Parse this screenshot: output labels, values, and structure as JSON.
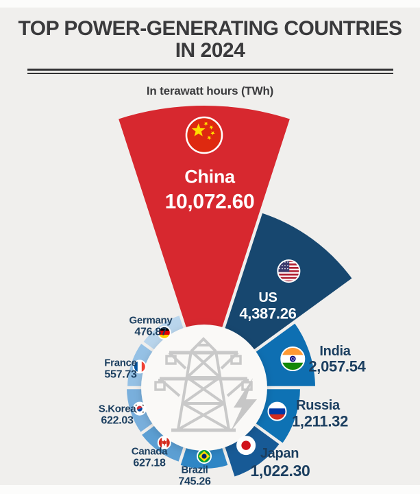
{
  "header": {
    "title_line1": "TOP POWER-GENERATING COUNTRIES",
    "title_line2": "IN 2024",
    "subtitle": "In terawatt hours (TWh)"
  },
  "colors": {
    "background": "#F0EFED",
    "label_navy": "#1C3F60",
    "title_text": "#3A3A3C",
    "center_circle": "#FAF9F7",
    "icon_gray": "#C9C9C9"
  },
  "chart_data": {
    "type": "polar-area-rose",
    "title": "TOP POWER-GENERATING COUNTRIES IN 2024",
    "unit": "TWh",
    "unit_label": "In terawatt hours (TWh)",
    "order": "clockwise from top, descending value, equal 36-degree sectors",
    "center_icon": "transmission-tower-with-lightning-bolt",
    "series": [
      {
        "country": "China",
        "value": 10072.6,
        "display": "10,072.60",
        "color": "#D7282F",
        "flag": "china",
        "label_color": "#FFFFFF"
      },
      {
        "country": "US",
        "value": 4387.26,
        "display": "4,387.26",
        "color": "#17476F",
        "flag": "us",
        "label_color": "#FFFFFF"
      },
      {
        "country": "India",
        "value": 2057.54,
        "display": "2,057.54",
        "color": "#0E6FB2",
        "flag": "india",
        "label_color": "#1C3F60"
      },
      {
        "country": "Russia",
        "value": 1211.32,
        "display": "1,211.32",
        "color": "#0E72B4",
        "flag": "russia",
        "label_color": "#1C3F60"
      },
      {
        "country": "Japan",
        "value": 1022.3,
        "display": "1,022.30",
        "color": "#175A96",
        "flag": "japan",
        "label_color": "#1C3F60"
      },
      {
        "country": "Brazil",
        "value": 745.26,
        "display": "745.26",
        "color": "#2F86C5",
        "flag": "brazil",
        "label_color": "#1C3F60"
      },
      {
        "country": "Canada",
        "value": 627.18,
        "display": "627.18",
        "color": "#5C9FD3",
        "flag": "canada",
        "label_color": "#1C3F60"
      },
      {
        "country": "S.Korea",
        "value": 622.03,
        "display": "622.03",
        "color": "#79AFDC",
        "flag": "skorea",
        "label_color": "#1C3F60"
      },
      {
        "country": "France",
        "value": 557.73,
        "display": "557.73",
        "color": "#95C1E5",
        "flag": "france",
        "label_color": "#1C3F60"
      },
      {
        "country": "Germany",
        "value": 476.87,
        "display": "476.87",
        "color": "#B9D5EC",
        "flag": "germany",
        "label_color": "#1C3F60"
      }
    ]
  }
}
